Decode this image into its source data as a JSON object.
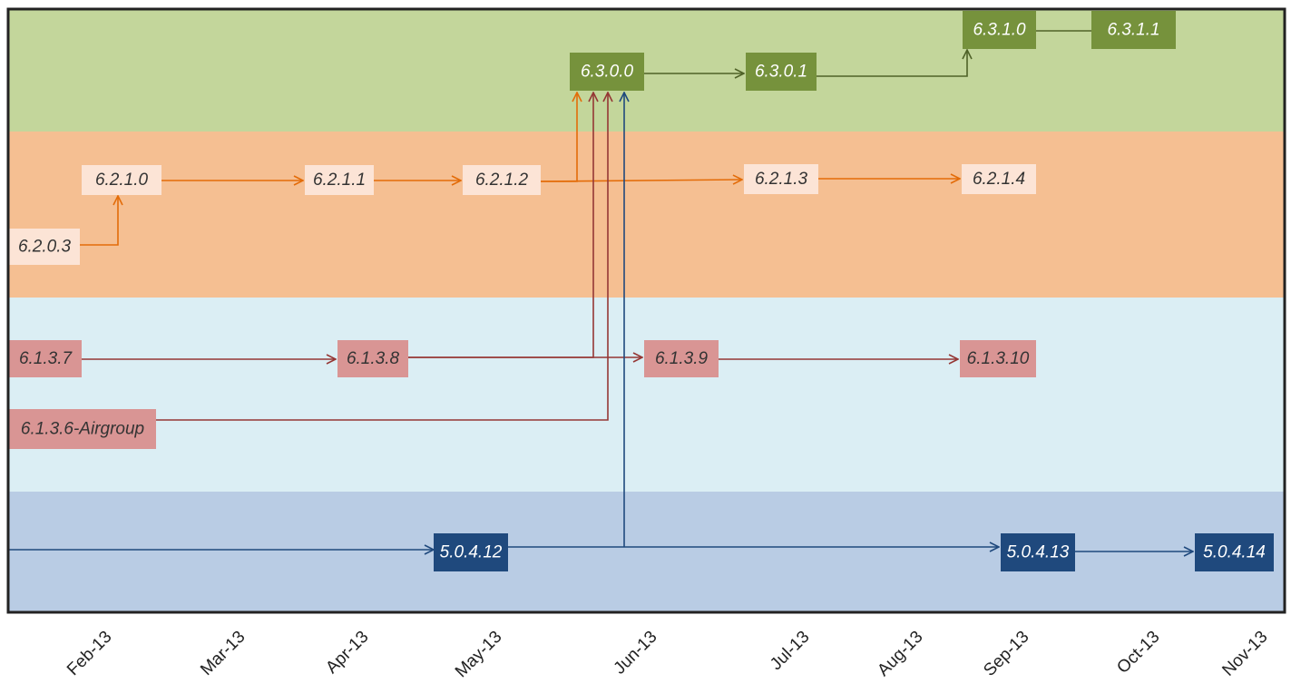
{
  "bands": [
    {
      "id": "6.3",
      "color": "#c3d69b"
    },
    {
      "id": "6.2",
      "color": "#f5bf92"
    },
    {
      "id": "6.1",
      "color": "#dbeef4"
    },
    {
      "id": "5.0",
      "color": "#b9cce4"
    }
  ],
  "colors": {
    "green_node": "#76923c",
    "green_line": "#4f6228",
    "orange_node": "#fce4d6",
    "orange_line": "#e36c09",
    "red_node": "#d99594",
    "red_line": "#953735",
    "blue_node": "#1f497d",
    "blue_line": "#1f497d"
  },
  "months": [
    "Feb-13",
    "Mar-13",
    "Apr-13",
    "May-13",
    "Jun-13",
    "Jul-13",
    "Aug-13",
    "Sep-13",
    "Oct-13",
    "Nov-13"
  ],
  "nodes": [
    {
      "id": "6.3.1.0",
      "label": "6.3.1.0",
      "style": "green"
    },
    {
      "id": "6.3.1.1",
      "label": "6.3.1.1",
      "style": "green"
    },
    {
      "id": "6.3.0.0",
      "label": "6.3.0.0",
      "style": "green"
    },
    {
      "id": "6.3.0.1",
      "label": "6.3.0.1",
      "style": "green"
    },
    {
      "id": "6.2.1.0",
      "label": "6.2.1.0",
      "style": "orange"
    },
    {
      "id": "6.2.1.1",
      "label": "6.2.1.1",
      "style": "orange"
    },
    {
      "id": "6.2.1.2",
      "label": "6.2.1.2",
      "style": "orange"
    },
    {
      "id": "6.2.1.3",
      "label": "6.2.1.3",
      "style": "orange"
    },
    {
      "id": "6.2.1.4",
      "label": "6.2.1.4",
      "style": "orange"
    },
    {
      "id": "6.2.0.3",
      "label": "6.2.0.3",
      "style": "orange"
    },
    {
      "id": "6.1.3.7",
      "label": "6.1.3.7",
      "style": "red"
    },
    {
      "id": "6.1.3.8",
      "label": "6.1.3.8",
      "style": "red"
    },
    {
      "id": "6.1.3.9",
      "label": "6.1.3.9",
      "style": "red"
    },
    {
      "id": "6.1.3.10",
      "label": "6.1.3.10",
      "style": "red"
    },
    {
      "id": "6.1.3.6-Airgroup",
      "label": "6.1.3.6-Airgroup",
      "style": "red"
    },
    {
      "id": "5.0.4.12",
      "label": "5.0.4.12",
      "style": "blue"
    },
    {
      "id": "5.0.4.13",
      "label": "5.0.4.13",
      "style": "blue"
    },
    {
      "id": "5.0.4.14",
      "label": "5.0.4.14",
      "style": "blue"
    }
  ],
  "edges": [
    {
      "from": "6.3.0.0",
      "to": "6.3.0.1",
      "color": "green",
      "arrow": true
    },
    {
      "from": "6.3.0.1",
      "to": "6.3.1.0",
      "color": "green",
      "arrow": true
    },
    {
      "from": "6.3.1.0",
      "to": "6.3.1.1",
      "color": "green",
      "arrow": false
    },
    {
      "from": "6.2.0.3",
      "to": "6.2.1.0",
      "color": "orange",
      "arrow": true
    },
    {
      "from": "6.2.1.0",
      "to": "6.2.1.1",
      "color": "orange",
      "arrow": true
    },
    {
      "from": "6.2.1.1",
      "to": "6.2.1.2",
      "color": "orange",
      "arrow": true
    },
    {
      "from": "6.2.1.2",
      "to": "6.2.1.3",
      "color": "orange",
      "arrow": true
    },
    {
      "from": "6.2.1.3",
      "to": "6.2.1.4",
      "color": "orange",
      "arrow": true
    },
    {
      "from": "6.2.1.2",
      "to": "6.3.0.0",
      "color": "orange",
      "arrow": true
    },
    {
      "from": "6.1.3.7",
      "to": "6.1.3.8",
      "color": "red",
      "arrow": true
    },
    {
      "from": "6.1.3.8",
      "to": "6.1.3.9",
      "color": "red",
      "arrow": true
    },
    {
      "from": "6.1.3.9",
      "to": "6.1.3.10",
      "color": "red",
      "arrow": true
    },
    {
      "from": "6.1.3.8",
      "to": "6.3.0.0",
      "color": "red",
      "arrow": true
    },
    {
      "from": "6.1.3.6-Airgroup",
      "to": "6.3.0.0",
      "color": "red",
      "arrow": true
    },
    {
      "from": "5.0.4.12",
      "to": "5.0.4.13",
      "color": "blue",
      "arrow": true
    },
    {
      "from": "5.0.4.13",
      "to": "5.0.4.14",
      "color": "blue",
      "arrow": true
    },
    {
      "from": "5.0.4.12",
      "to": "6.3.0.0",
      "color": "blue",
      "arrow": true
    }
  ]
}
